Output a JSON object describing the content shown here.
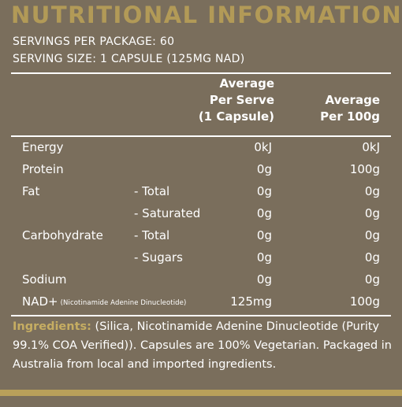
{
  "title": "NUTRITIONAL INFORMATION",
  "servings_per_package": "SERVINGS PER PACKAGE: 60",
  "serving_size": "SERVING SIZE: 1 CAPSULE (125MG NAD)",
  "headers": {
    "per_serve": [
      "Average",
      "Per Serve",
      "(1 Capsule)"
    ],
    "per_100g": [
      "Average",
      "Per 100g"
    ]
  },
  "rows": [
    {
      "name": "Energy",
      "sub": "",
      "serve": "0kJ",
      "per100": "0kJ"
    },
    {
      "name": "Protein",
      "sub": "",
      "serve": "0g",
      "per100": "100g"
    },
    {
      "name": "Fat",
      "sub": "- Total",
      "serve": "0g",
      "per100": "0g"
    },
    {
      "name": "",
      "sub": "- Saturated",
      "serve": "0g",
      "per100": "0g"
    },
    {
      "name": "Carbohydrate",
      "sub": "- Total",
      "serve": "0g",
      "per100": "0g"
    },
    {
      "name": "",
      "sub": "- Sugars",
      "serve": "0g",
      "per100": "0g"
    },
    {
      "name": "Sodium",
      "sub": "",
      "serve": "0g",
      "per100": "0g"
    },
    {
      "name": "NAD+",
      "sub": "(Nicotinamide Adenine Dinucleotide)",
      "serve": "125mg",
      "per100": "100g"
    }
  ],
  "ingredients": {
    "label": "Ingredients:",
    "text": " (Silica, Nicotinamide Adenine Dinucleotide (Purity 99.1% COA Verified)). Capsules are 100% Vegetarian. Packaged in Australia from local and imported ingredients."
  },
  "colors": {
    "background": "#7a6e5c",
    "accent": "#b29a57",
    "text": "#ffffff"
  }
}
